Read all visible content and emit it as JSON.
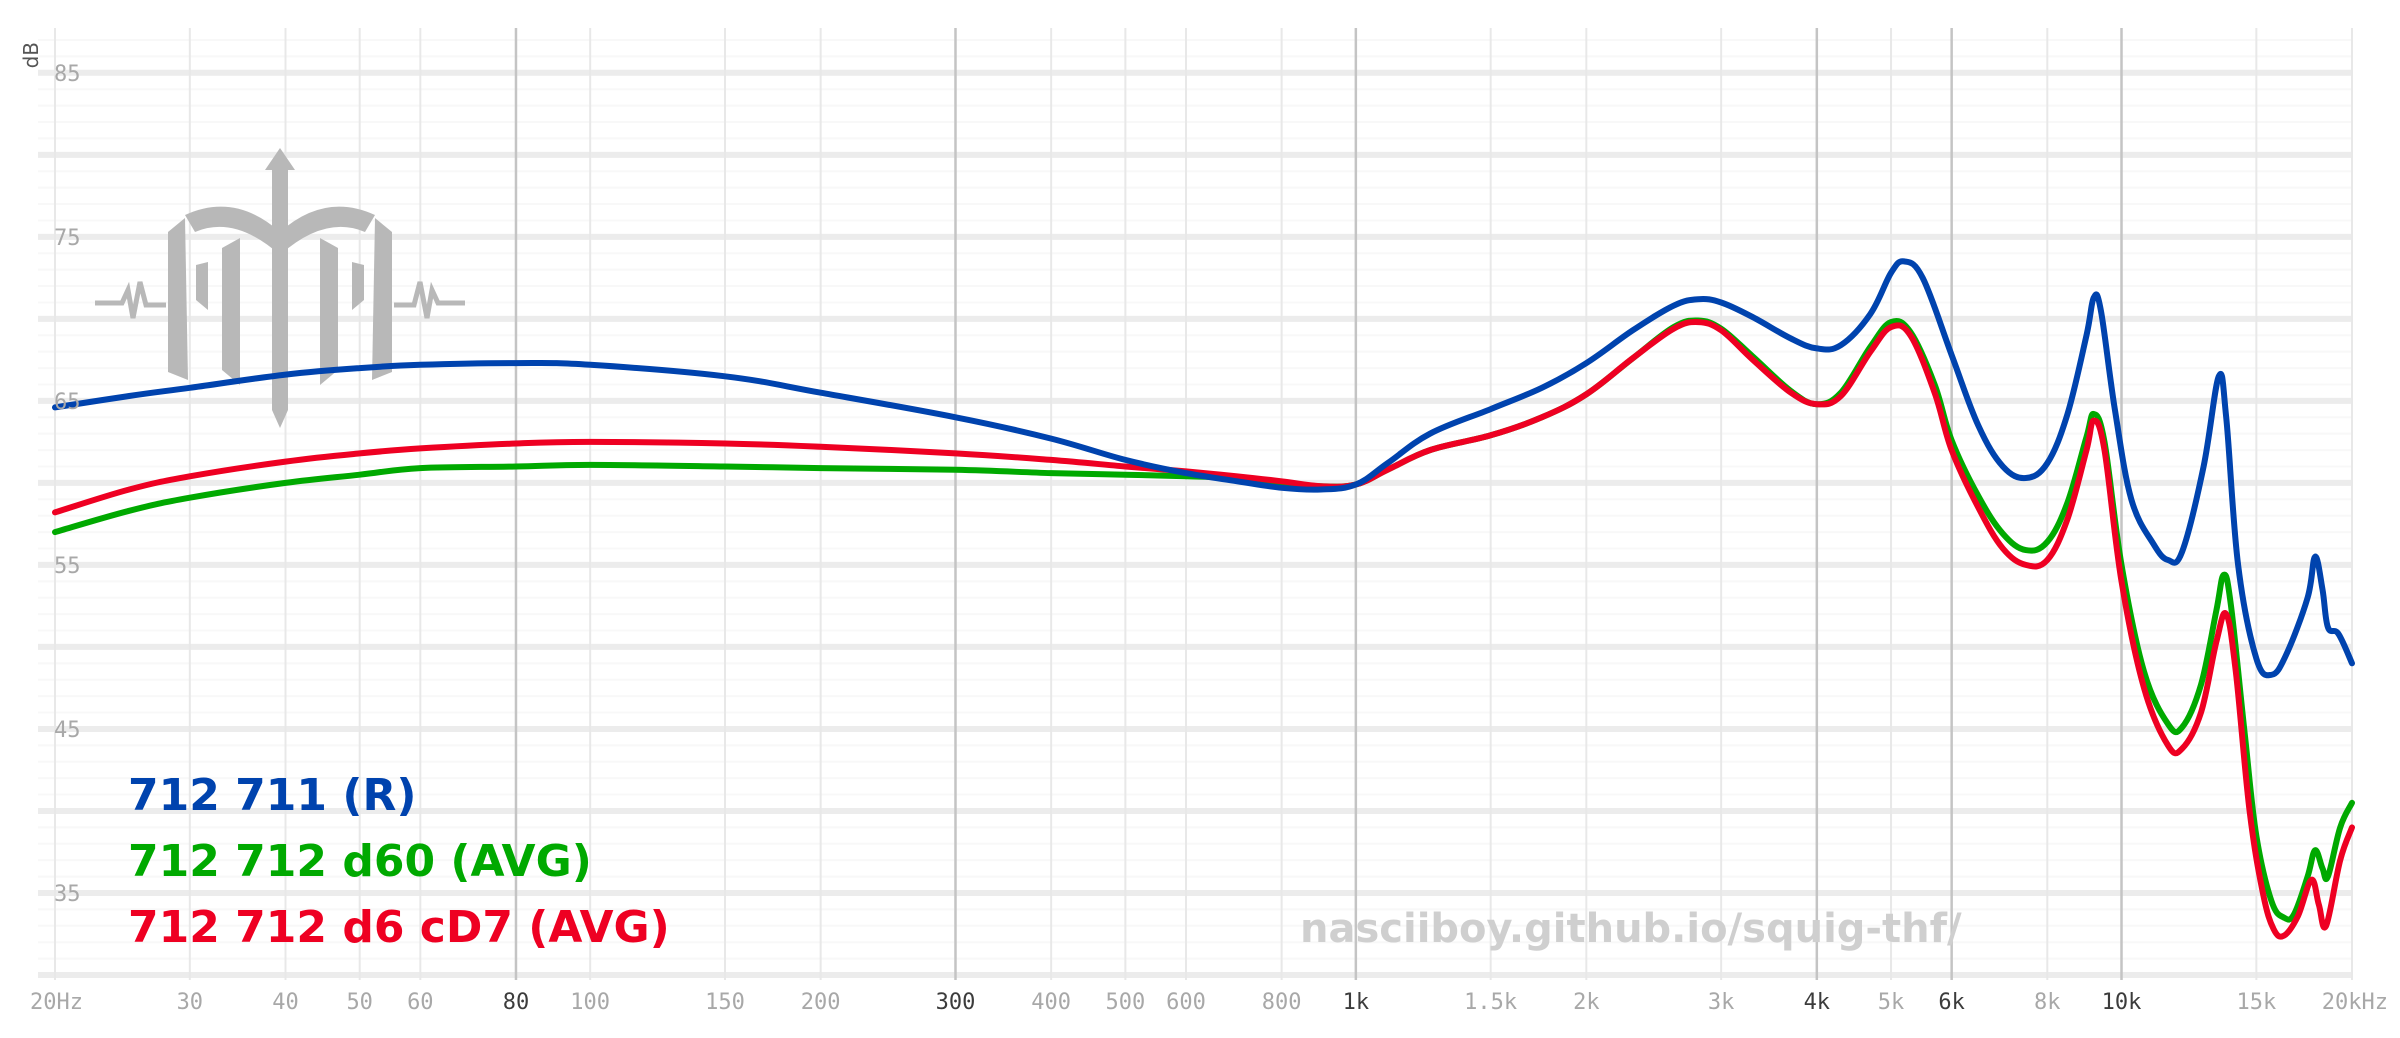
{
  "chart_data": {
    "type": "line",
    "x_scale": "log",
    "xlim": [
      20,
      20000
    ],
    "ylim": [
      30,
      87
    ],
    "ylabel": "dB",
    "y_ticks": [
      {
        "value": 85,
        "label": "85"
      },
      {
        "value": 75,
        "label": "75"
      },
      {
        "value": 65,
        "label": "65"
      },
      {
        "value": 55,
        "label": "55"
      },
      {
        "value": 45,
        "label": "45"
      },
      {
        "value": 35,
        "label": "35"
      }
    ],
    "x_ticks": [
      {
        "value": 20,
        "label": "20Hz",
        "major": false
      },
      {
        "value": 30,
        "label": "30",
        "major": false
      },
      {
        "value": 40,
        "label": "40",
        "major": false
      },
      {
        "value": 50,
        "label": "50",
        "major": false
      },
      {
        "value": 60,
        "label": "60",
        "major": false
      },
      {
        "value": 80,
        "label": "80",
        "major": true
      },
      {
        "value": 100,
        "label": "100",
        "major": false
      },
      {
        "value": 150,
        "label": "150",
        "major": false
      },
      {
        "value": 200,
        "label": "200",
        "major": false
      },
      {
        "value": 300,
        "label": "300",
        "major": true
      },
      {
        "value": 400,
        "label": "400",
        "major": false
      },
      {
        "value": 500,
        "label": "500",
        "major": false
      },
      {
        "value": 600,
        "label": "600",
        "major": false
      },
      {
        "value": 800,
        "label": "800",
        "major": false
      },
      {
        "value": 1000,
        "label": "1k",
        "major": true
      },
      {
        "value": 1500,
        "label": "1.5k",
        "major": false
      },
      {
        "value": 2000,
        "label": "2k",
        "major": false
      },
      {
        "value": 3000,
        "label": "3k",
        "major": false
      },
      {
        "value": 4000,
        "label": "4k",
        "major": true
      },
      {
        "value": 5000,
        "label": "5k",
        "major": false
      },
      {
        "value": 6000,
        "label": "6k",
        "major": true
      },
      {
        "value": 8000,
        "label": "8k",
        "major": false
      },
      {
        "value": 10000,
        "label": "10k",
        "major": true
      },
      {
        "value": 15000,
        "label": "15k",
        "major": false
      },
      {
        "value": 20000,
        "label": "20kHz",
        "major": false
      }
    ],
    "series": [
      {
        "name": "712 711 (R)",
        "color": "#0043ae",
        "points": [
          [
            20,
            64.6
          ],
          [
            25,
            65.3
          ],
          [
            30,
            65.8
          ],
          [
            40,
            66.6
          ],
          [
            50,
            67.0
          ],
          [
            60,
            67.2
          ],
          [
            80,
            67.3
          ],
          [
            100,
            67.2
          ],
          [
            150,
            66.5
          ],
          [
            200,
            65.5
          ],
          [
            300,
            64.0
          ],
          [
            400,
            62.7
          ],
          [
            500,
            61.4
          ],
          [
            600,
            60.6
          ],
          [
            700,
            60.1
          ],
          [
            800,
            59.7
          ],
          [
            900,
            59.6
          ],
          [
            1000,
            59.9
          ],
          [
            1100,
            61.2
          ],
          [
            1250,
            63.0
          ],
          [
            1500,
            64.5
          ],
          [
            1750,
            65.8
          ],
          [
            2000,
            67.3
          ],
          [
            2300,
            69.3
          ],
          [
            2600,
            70.8
          ],
          [
            2800,
            71.2
          ],
          [
            3000,
            71.0
          ],
          [
            3300,
            70.1
          ],
          [
            3700,
            68.8
          ],
          [
            4000,
            68.2
          ],
          [
            4300,
            68.4
          ],
          [
            4700,
            70.3
          ],
          [
            5000,
            72.8
          ],
          [
            5200,
            73.5
          ],
          [
            5500,
            72.5
          ],
          [
            6000,
            67.8
          ],
          [
            6500,
            63.5
          ],
          [
            7000,
            61.0
          ],
          [
            7500,
            60.3
          ],
          [
            8000,
            61.2
          ],
          [
            8500,
            64.2
          ],
          [
            9000,
            69.0
          ],
          [
            9200,
            71.3
          ],
          [
            9400,
            70.5
          ],
          [
            9800,
            64.5
          ],
          [
            10300,
            59.0
          ],
          [
            11000,
            56.3
          ],
          [
            11500,
            55.3
          ],
          [
            12000,
            55.8
          ],
          [
            12800,
            61.0
          ],
          [
            13400,
            66.5
          ],
          [
            13700,
            64.0
          ],
          [
            14200,
            55.0
          ],
          [
            15000,
            49.3
          ],
          [
            15700,
            48.3
          ],
          [
            16400,
            49.5
          ],
          [
            17500,
            53.0
          ],
          [
            17900,
            55.5
          ],
          [
            18300,
            53.5
          ],
          [
            18600,
            51.2
          ],
          [
            19200,
            50.8
          ],
          [
            20000,
            49.0
          ]
        ]
      },
      {
        "name": "712 712 d60 (AVG)",
        "color": "#00a900",
        "points": [
          [
            20,
            57.0
          ],
          [
            25,
            58.3
          ],
          [
            30,
            59.1
          ],
          [
            40,
            60.0
          ],
          [
            50,
            60.5
          ],
          [
            60,
            60.9
          ],
          [
            80,
            61.0
          ],
          [
            100,
            61.1
          ],
          [
            150,
            61.0
          ],
          [
            200,
            60.9
          ],
          [
            300,
            60.8
          ],
          [
            400,
            60.6
          ],
          [
            500,
            60.5
          ],
          [
            600,
            60.4
          ],
          [
            700,
            60.3
          ],
          [
            800,
            60.0
          ],
          [
            900,
            59.8
          ],
          [
            1000,
            59.9
          ],
          [
            1100,
            60.8
          ],
          [
            1250,
            62.0
          ],
          [
            1500,
            62.9
          ],
          [
            1750,
            64.0
          ],
          [
            2000,
            65.4
          ],
          [
            2300,
            67.6
          ],
          [
            2600,
            69.5
          ],
          [
            2800,
            69.9
          ],
          [
            3000,
            69.4
          ],
          [
            3300,
            67.7
          ],
          [
            3700,
            65.6
          ],
          [
            4000,
            64.8
          ],
          [
            4300,
            65.5
          ],
          [
            4700,
            68.3
          ],
          [
            5000,
            69.8
          ],
          [
            5300,
            69.2
          ],
          [
            5700,
            66.0
          ],
          [
            6000,
            62.6
          ],
          [
            6500,
            59.2
          ],
          [
            7000,
            56.9
          ],
          [
            7500,
            55.9
          ],
          [
            8000,
            56.4
          ],
          [
            8500,
            58.8
          ],
          [
            9000,
            62.8
          ],
          [
            9200,
            64.2
          ],
          [
            9500,
            62.5
          ],
          [
            10000,
            55.0
          ],
          [
            10700,
            48.5
          ],
          [
            11500,
            45.3
          ],
          [
            12000,
            45.1
          ],
          [
            12700,
            47.7
          ],
          [
            13300,
            52.2
          ],
          [
            13600,
            54.4
          ],
          [
            13900,
            52.5
          ],
          [
            14500,
            44.5
          ],
          [
            15000,
            38.5
          ],
          [
            15700,
            34.5
          ],
          [
            16300,
            33.5
          ],
          [
            16800,
            33.7
          ],
          [
            17500,
            36.0
          ],
          [
            17900,
            37.6
          ],
          [
            18300,
            36.5
          ],
          [
            18600,
            36.0
          ],
          [
            19300,
            39.0
          ],
          [
            20000,
            40.5
          ]
        ]
      },
      {
        "name": "712 712 d6 cD7 (AVG)",
        "color": "#ee0022",
        "points": [
          [
            20,
            58.2
          ],
          [
            25,
            59.6
          ],
          [
            30,
            60.4
          ],
          [
            40,
            61.3
          ],
          [
            50,
            61.8
          ],
          [
            60,
            62.1
          ],
          [
            80,
            62.4
          ],
          [
            100,
            62.5
          ],
          [
            150,
            62.4
          ],
          [
            200,
            62.2
          ],
          [
            300,
            61.8
          ],
          [
            400,
            61.4
          ],
          [
            500,
            61.0
          ],
          [
            600,
            60.7
          ],
          [
            700,
            60.4
          ],
          [
            800,
            60.1
          ],
          [
            900,
            59.8
          ],
          [
            1000,
            59.9
          ],
          [
            1100,
            60.8
          ],
          [
            1250,
            62.0
          ],
          [
            1500,
            62.9
          ],
          [
            1750,
            64.0
          ],
          [
            2000,
            65.4
          ],
          [
            2300,
            67.6
          ],
          [
            2600,
            69.4
          ],
          [
            2800,
            69.8
          ],
          [
            3000,
            69.3
          ],
          [
            3300,
            67.5
          ],
          [
            3700,
            65.5
          ],
          [
            4000,
            64.8
          ],
          [
            4300,
            65.3
          ],
          [
            4700,
            68.0
          ],
          [
            5000,
            69.5
          ],
          [
            5300,
            69.0
          ],
          [
            5700,
            65.5
          ],
          [
            6000,
            62.0
          ],
          [
            6500,
            58.5
          ],
          [
            7000,
            56.0
          ],
          [
            7500,
            55.0
          ],
          [
            8000,
            55.3
          ],
          [
            8500,
            57.8
          ],
          [
            9000,
            62.0
          ],
          [
            9200,
            63.8
          ],
          [
            9500,
            62.0
          ],
          [
            10000,
            54.0
          ],
          [
            10700,
            47.5
          ],
          [
            11500,
            44.0
          ],
          [
            12000,
            43.8
          ],
          [
            12700,
            46.0
          ],
          [
            13300,
            50.3
          ],
          [
            13700,
            52.0
          ],
          [
            14100,
            48.5
          ],
          [
            14700,
            40.0
          ],
          [
            15300,
            35.0
          ],
          [
            15800,
            32.8
          ],
          [
            16300,
            32.4
          ],
          [
            17000,
            33.6
          ],
          [
            17700,
            35.8
          ],
          [
            18100,
            34.3
          ],
          [
            18500,
            33.0
          ],
          [
            19300,
            37.0
          ],
          [
            20000,
            39.0
          ]
        ]
      }
    ]
  },
  "legend": [
    {
      "label": "712 711 (R)",
      "color": "#0043ae"
    },
    {
      "label": "712 712 d60 (AVG)",
      "color": "#00a900"
    },
    {
      "label": "712 712 d6 cD7 (AVG)",
      "color": "#ee0022"
    }
  ],
  "watermark": "nasciiboy.github.io/squig-thf/"
}
